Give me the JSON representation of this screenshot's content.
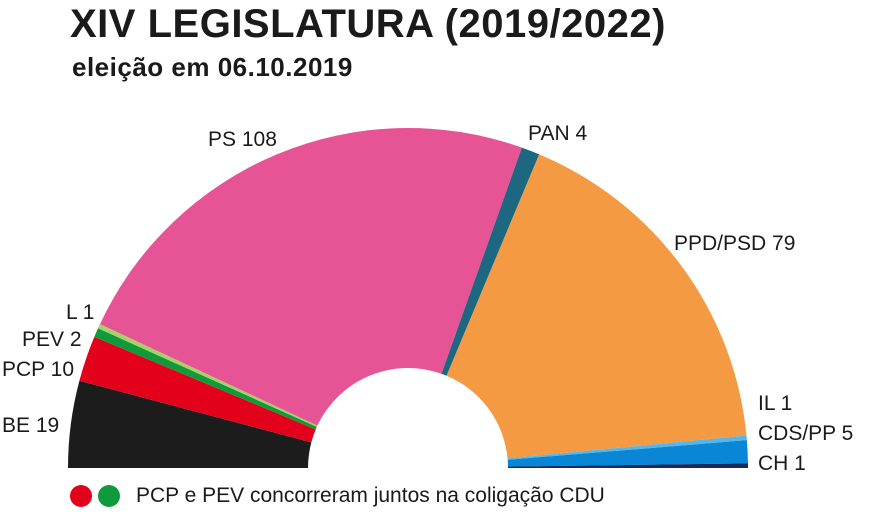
{
  "title": "XIV LEGISLATURA (2019/2022)",
  "subtitle": "eleição em 06.10.2019",
  "footnote": {
    "text": "PCP e PEV concorreram juntos na coligação CDU",
    "dot_colors": [
      "#e2001a",
      "#0f9a3c"
    ]
  },
  "chart_data": {
    "type": "pie",
    "shape": "half-donut",
    "total": 230,
    "series": [
      {
        "name": "BE",
        "value": 19,
        "label": "BE 19",
        "color": "#1c1c1c"
      },
      {
        "name": "PCP",
        "value": 10,
        "label": "PCP 10",
        "color": "#e2001a"
      },
      {
        "name": "PEV",
        "value": 2,
        "label": "PEV 2",
        "color": "#119a3a"
      },
      {
        "name": "L",
        "value": 1,
        "label": "L 1",
        "color": "#a8cf6a"
      },
      {
        "name": "PS",
        "value": 108,
        "label": "PS 108",
        "color": "#e65496"
      },
      {
        "name": "PAN",
        "value": 4,
        "label": "PAN 4",
        "color": "#1d6880"
      },
      {
        "name": "PPD/PSD",
        "value": 79,
        "label": "PPD/PSD 79",
        "color": "#f39a43"
      },
      {
        "name": "IL",
        "value": 1,
        "label": "IL 1",
        "color": "#55b7e8"
      },
      {
        "name": "CDS/PP",
        "value": 5,
        "label": "CDS/PP 5",
        "color": "#0a86d6"
      },
      {
        "name": "CH",
        "value": 1,
        "label": "CH 1",
        "color": "#1a2a5e"
      }
    ]
  }
}
